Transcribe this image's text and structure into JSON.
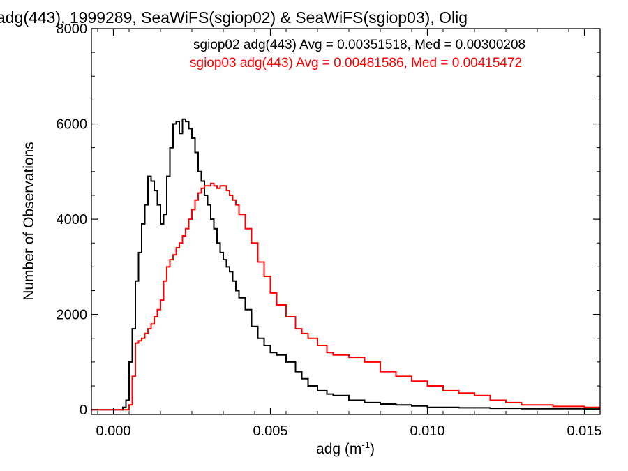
{
  "chart_data": {
    "type": "line",
    "title": "adg(443), 1999289, SeaWiFS(sgiop02) & SeaWiFS(sgiop03), Olig",
    "xlabel": "adg (m",
    "xlabel_sup": "-1",
    "xlabel_close": ")",
    "ylabel": "Number of Observations",
    "xlim": [
      -0.0007,
      0.0155
    ],
    "ylim": [
      -100,
      8000
    ],
    "xticks": [
      0.0,
      0.005,
      0.01,
      0.015
    ],
    "xtick_labels": [
      "0.000",
      "0.005",
      "0.010",
      "0.015"
    ],
    "yticks": [
      0,
      2000,
      4000,
      6000,
      8000
    ],
    "ytick_labels": [
      "0",
      "2000",
      "4000",
      "6000",
      "8000"
    ],
    "grid": false,
    "legend_position": "top-right",
    "series": [
      {
        "name": "sgiop02 adg(443) Avg = 0.00351518, Med = 0.00300208",
        "color": "#000000",
        "x": [
          0.0003,
          0.0004,
          0.0005,
          0.0006,
          0.0007,
          0.0008,
          0.0009,
          0.001,
          0.0011,
          0.0012,
          0.0013,
          0.0014,
          0.0015,
          0.0016,
          0.0017,
          0.0018,
          0.0019,
          0.002,
          0.0021,
          0.0022,
          0.0023,
          0.0024,
          0.0025,
          0.0026,
          0.0027,
          0.0028,
          0.0029,
          0.003,
          0.0031,
          0.0032,
          0.0033,
          0.0034,
          0.0035,
          0.0036,
          0.0037,
          0.0038,
          0.0039,
          0.004,
          0.0042,
          0.0044,
          0.0046,
          0.0048,
          0.005,
          0.0052,
          0.0055,
          0.0058,
          0.006,
          0.0062,
          0.0065,
          0.0068,
          0.007,
          0.0075,
          0.008,
          0.0085,
          0.009,
          0.0095,
          0.01,
          0.011,
          0.012,
          0.013,
          0.014,
          0.015,
          0.0155
        ],
        "values": [
          50,
          200,
          1000,
          1700,
          2700,
          3300,
          3900,
          4300,
          4900,
          4800,
          4600,
          4300,
          3900,
          4100,
          4900,
          5500,
          6000,
          6050,
          5800,
          6100,
          6050,
          5900,
          5700,
          5400,
          5000,
          4800,
          4500,
          4300,
          4000,
          3800,
          3500,
          3300,
          3150,
          3000,
          2900,
          2700,
          2500,
          2350,
          2100,
          1750,
          1500,
          1350,
          1200,
          1150,
          1000,
          800,
          650,
          500,
          400,
          330,
          300,
          200,
          150,
          120,
          100,
          80,
          50,
          40,
          30,
          20,
          20,
          15,
          10
        ]
      },
      {
        "name": "sgiop03 adg(443) Avg = 0.00481586, Med = 0.00415472",
        "color": "#ff0000",
        "x": [
          0.0005,
          0.0006,
          0.0007,
          0.0008,
          0.0009,
          0.001,
          0.0011,
          0.0012,
          0.0013,
          0.0014,
          0.0015,
          0.0016,
          0.0017,
          0.0018,
          0.0019,
          0.002,
          0.0021,
          0.0022,
          0.0023,
          0.0024,
          0.0025,
          0.0026,
          0.0027,
          0.0028,
          0.0029,
          0.003,
          0.0031,
          0.0032,
          0.0033,
          0.0034,
          0.0035,
          0.0036,
          0.0037,
          0.0038,
          0.0039,
          0.004,
          0.0042,
          0.0044,
          0.0046,
          0.0048,
          0.005,
          0.0052,
          0.0055,
          0.0058,
          0.006,
          0.0062,
          0.0065,
          0.0068,
          0.007,
          0.0075,
          0.008,
          0.0085,
          0.009,
          0.0095,
          0.01,
          0.0105,
          0.011,
          0.0115,
          0.012,
          0.0125,
          0.013,
          0.014,
          0.015,
          0.0155
        ],
        "values": [
          100,
          700,
          1400,
          1450,
          1500,
          1600,
          1700,
          1800,
          1950,
          2100,
          2300,
          2700,
          3000,
          3150,
          3250,
          3400,
          3500,
          3650,
          3800,
          4000,
          4200,
          4400,
          4550,
          4650,
          4700,
          4700,
          4750,
          4700,
          4650,
          4700,
          4700,
          4600,
          4500,
          4400,
          4300,
          4100,
          3800,
          3500,
          3100,
          2800,
          2450,
          2200,
          1950,
          1700,
          1600,
          1500,
          1350,
          1200,
          1150,
          1100,
          1000,
          800,
          700,
          600,
          500,
          400,
          350,
          300,
          200,
          150,
          100,
          70,
          50,
          40
        ]
      }
    ]
  }
}
